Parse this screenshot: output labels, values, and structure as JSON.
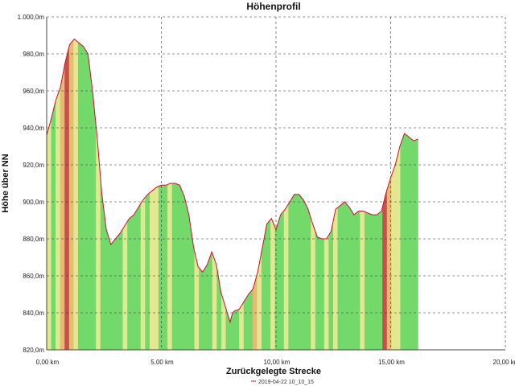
{
  "chart_data": {
    "type": "area",
    "title": "Höhenprofil",
    "xlabel": "Zurückgelegte Strecke",
    "ylabel": "Höhe über NN",
    "xlim": [
      0,
      20
    ],
    "ylim": [
      820,
      1000
    ],
    "x_ticks": [
      "0,00 km",
      "5,00 km",
      "10,00 km",
      "15,00 km",
      "20,00 km"
    ],
    "x_tick_values": [
      0,
      5,
      10,
      15,
      20
    ],
    "y_ticks": [
      "820,0m",
      "840,0m",
      "860,0m",
      "880,0m",
      "900,0m",
      "920,0m",
      "940,0m",
      "960,0m",
      "980,0m",
      "1.000,0m"
    ],
    "y_tick_values": [
      820,
      840,
      860,
      880,
      900,
      920,
      940,
      960,
      980,
      1000
    ],
    "grid": true,
    "legend_position": "bottom",
    "series": [
      {
        "name": "2019-04-22 10_10_15",
        "color": "#c8102e",
        "x": [
          0,
          0.2,
          0.4,
          0.6,
          0.8,
          1.0,
          1.2,
          1.4,
          1.6,
          1.8,
          2.0,
          2.2,
          2.4,
          2.6,
          2.8,
          3.0,
          3.2,
          3.4,
          3.6,
          3.8,
          4.0,
          4.2,
          4.4,
          4.6,
          4.8,
          5.0,
          5.2,
          5.4,
          5.6,
          5.8,
          6.0,
          6.2,
          6.4,
          6.6,
          6.8,
          7.0,
          7.2,
          7.4,
          7.6,
          7.8,
          8.0,
          8.1,
          8.2,
          8.4,
          8.6,
          8.8,
          9.0,
          9.2,
          9.4,
          9.6,
          9.8,
          10.0,
          10.2,
          10.4,
          10.6,
          10.8,
          11.0,
          11.2,
          11.4,
          11.6,
          11.8,
          12.0,
          12.2,
          12.4,
          12.6,
          12.8,
          13.0,
          13.2,
          13.4,
          13.6,
          13.8,
          14.0,
          14.2,
          14.4,
          14.6,
          14.8,
          15.0,
          15.2,
          15.4,
          15.6,
          15.8,
          16.0,
          16.2
        ],
        "values": [
          936,
          945,
          955,
          962,
          975,
          985,
          988,
          986,
          984,
          980,
          960,
          935,
          905,
          885,
          877,
          880,
          883,
          887,
          891,
          893,
          897,
          901,
          904,
          906,
          908,
          909,
          909,
          910,
          910,
          909,
          903,
          893,
          876,
          865,
          862,
          866,
          873,
          866,
          851,
          843,
          835,
          840,
          841,
          842,
          846,
          850,
          853,
          862,
          875,
          888,
          891,
          885,
          893,
          896,
          900,
          904,
          904,
          901,
          896,
          888,
          881,
          880,
          880,
          884,
          896,
          898,
          900,
          897,
          893,
          895,
          895,
          894,
          893,
          893,
          895,
          905,
          913,
          920,
          930,
          937,
          935,
          933,
          934
        ]
      }
    ],
    "slope_colors": {
      "green": "#73d96b",
      "yellow": "#e2e890",
      "orange": "#e6bb73",
      "red": "#c8504a"
    },
    "band_pattern": [
      "yellow",
      "green",
      "yellow",
      "orange",
      "red",
      "orange",
      "yellow",
      "green",
      "green",
      "green",
      "green",
      "yellow",
      "green",
      "green",
      "green",
      "green",
      "green",
      "yellow",
      "green",
      "green",
      "green",
      "yellow",
      "green",
      "yellow",
      "yellow",
      "green",
      "green",
      "yellow",
      "green",
      "green",
      "green",
      "green",
      "green",
      "yellow",
      "green",
      "green",
      "green",
      "yellow",
      "green",
      "yellow",
      "green",
      "green",
      "green",
      "yellow",
      "green",
      "green",
      "orange",
      "yellow",
      "green",
      "green",
      "yellow",
      "green",
      "green",
      "yellow",
      "green",
      "green",
      "green",
      "green",
      "green",
      "yellow",
      "green",
      "green",
      "yellow",
      "green",
      "yellow",
      "green",
      "green",
      "green",
      "green",
      "green",
      "yellow",
      "green",
      "green",
      "green",
      "green",
      "red",
      "orange",
      "yellow",
      "yellow",
      "green",
      "green",
      "green",
      "green"
    ]
  }
}
